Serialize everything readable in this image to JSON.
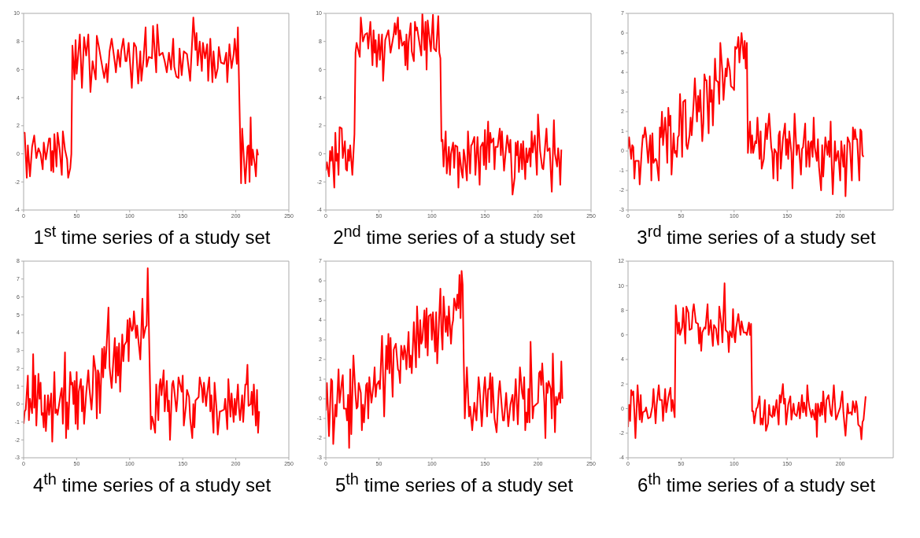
{
  "chart_data": [
    {
      "type": "line",
      "title": "1$^{st}$ time series of a study set",
      "color": "#ff0000",
      "xlim": [
        0,
        250
      ],
      "xticks": [
        0,
        50,
        100,
        150,
        200,
        250
      ],
      "ylim": [
        -4,
        10
      ],
      "yticks": [
        -4,
        -2,
        0,
        2,
        4,
        6,
        8,
        10
      ],
      "x": [
        0,
        1,
        3,
        4,
        6,
        8,
        10,
        12,
        14,
        16,
        18,
        19,
        21,
        24,
        25,
        26,
        27,
        28,
        29,
        31,
        32,
        34,
        36,
        37,
        39,
        41,
        42,
        44,
        45,
        46,
        48,
        49,
        50,
        53,
        55,
        57,
        59,
        61,
        63,
        65,
        68,
        69,
        71,
        73,
        76,
        78,
        79,
        81,
        83,
        86,
        87,
        89,
        91,
        92,
        94,
        96,
        97,
        99,
        101,
        102,
        104,
        106,
        108,
        110,
        111,
        113,
        115,
        116,
        118,
        121,
        122,
        125,
        126,
        128,
        131,
        133,
        135,
        137,
        139,
        141,
        142,
        144,
        146,
        147,
        149,
        151,
        154,
        157,
        160,
        162,
        163,
        164,
        166,
        168,
        169,
        171,
        173,
        174,
        176,
        178,
        179,
        181,
        183,
        184,
        186,
        189,
        191,
        192,
        194,
        196,
        198,
        199,
        201,
        202,
        205,
        206,
        209,
        211,
        212,
        213,
        214,
        215,
        216,
        218,
        219,
        220,
        221
      ],
      "values": [
        1.5,
        1.5,
        -1.7,
        0.6,
        -1.6,
        0.5,
        1.3,
        -0.3,
        0.4,
        0,
        -1.1,
        0.8,
        -0.4,
        1.1,
        1.1,
        -1.2,
        0.2,
        -1.3,
        1.4,
        -0.9,
        1.5,
        0.3,
        -1.5,
        1.6,
        0.3,
        -0.4,
        -1.7,
        -1.0,
        0,
        7.7,
        5.3,
        8.1,
        5.7,
        8.5,
        4.7,
        8.3,
        7.0,
        8.5,
        4.4,
        6.6,
        5.3,
        8.4,
        7.6,
        6.7,
        5.4,
        6.4,
        5.1,
        7.3,
        8.2,
        6.5,
        5.8,
        7.4,
        6.2,
        7.3,
        8.2,
        6.6,
        6.6,
        7.9,
        5.8,
        4.7,
        7.9,
        7.6,
        5.0,
        7.3,
        5.2,
        6.7,
        9.0,
        6.2,
        6.9,
        6.8,
        9.1,
        5.8,
        9.2,
        7.0,
        7.2,
        6.6,
        5.8,
        7.2,
        6.0,
        8.2,
        6.2,
        5.5,
        5.4,
        7.5,
        5.6,
        7.3,
        7.1,
        5.2,
        9.7,
        7.4,
        8.6,
        6.3,
        8.0,
        5.9,
        7.9,
        6.8,
        7.8,
        5.2,
        8.2,
        5.1,
        7.3,
        5.4,
        6.1,
        7.6,
        6.5,
        6.4,
        7.2,
        5.1,
        7.8,
        6.1,
        7.1,
        8.2,
        6.4,
        9.0,
        -2.1,
        1.8,
        -2.1,
        0.5,
        0.6,
        -2.0,
        2.6,
        -0.8,
        0.3,
        -0.8,
        -1.6,
        0.3,
        -0.1
      ]
    },
    {
      "type": "line",
      "title": "2$^{nd}$ time series of a study set",
      "color": "#ff0000",
      "xlim": [
        0,
        250
      ],
      "xticks": [
        0,
        50,
        100,
        150,
        200,
        250
      ],
      "ylim": [
        -4,
        10
      ],
      "yticks": [
        -4,
        -2,
        0,
        2,
        4,
        6,
        8,
        10
      ],
      "x": [
        0,
        1,
        3,
        4,
        5,
        6,
        8,
        9,
        10,
        11,
        12,
        13,
        15,
        16,
        18,
        19,
        20,
        21,
        22,
        23,
        25,
        27,
        28,
        29,
        32,
        33,
        35,
        37,
        39,
        40,
        42,
        44,
        45,
        46,
        47,
        48,
        50,
        51,
        53,
        54,
        56,
        59,
        61,
        64,
        65,
        66,
        68,
        69,
        70,
        72,
        74,
        75,
        76,
        77,
        78,
        80,
        81,
        83,
        84,
        85,
        86,
        88,
        90,
        91,
        93,
        94,
        95,
        96,
        98,
        99,
        101,
        102,
        104,
        106,
        107,
        108,
        109,
        110,
        111,
        113,
        114,
        116,
        117,
        118,
        120,
        121,
        122,
        124,
        125,
        126,
        128,
        129,
        130,
        131,
        133,
        134,
        136,
        137,
        138,
        140,
        141,
        143,
        145,
        146,
        148,
        149,
        150,
        151,
        153,
        154,
        155,
        156,
        158,
        159,
        160,
        162,
        164,
        165,
        166,
        168,
        170,
        171,
        173,
        174,
        176,
        178,
        179,
        180,
        181,
        182,
        184,
        185,
        186,
        188,
        189,
        190,
        192,
        193,
        194,
        195,
        197,
        199,
        200,
        202,
        204,
        205,
        208,
        209,
        211,
        213,
        215,
        216,
        218,
        219,
        220,
        221,
        222
      ],
      "values": [
        -1.2,
        -0.6,
        -1.6,
        0.2,
        -0.5,
        0.5,
        -2.4,
        1.5,
        -0.5,
        0,
        -1.5,
        1.9,
        1.8,
        -0.3,
        0.9,
        -1.1,
        -1.2,
        0.3,
        -0.5,
        0.6,
        -1.5,
        1.4,
        7.2,
        7.9,
        6.9,
        9.7,
        8.0,
        8.5,
        8.6,
        7.5,
        9.4,
        6.3,
        8.8,
        7.2,
        8.1,
        6.2,
        8.5,
        6.7,
        8.5,
        5.2,
        8.1,
        8.8,
        7.2,
        8.5,
        9.3,
        8.5,
        9.7,
        7.5,
        8.8,
        7.7,
        8.0,
        6.3,
        8.5,
        6.0,
        7.9,
        9.3,
        7.3,
        6.6,
        9.4,
        8.8,
        9.0,
        8.0,
        7.0,
        10.0,
        7.4,
        9.4,
        6.0,
        9.5,
        8.0,
        7.3,
        9.9,
        7.5,
        7.3,
        9.8,
        7.2,
        6.8,
        0.9,
        1.0,
        -0.9,
        1.6,
        -1.4,
        0.5,
        -1.5,
        0,
        0.8,
        -1.0,
        0.6,
        0.5,
        -2.4,
        0.1,
        -1.3,
        -1.7,
        0.3,
        -0.2,
        -1.9,
        1.6,
        -1.4,
        0.6,
        0.7,
        1.2,
        -1.5,
        1.2,
        -2.2,
        0.5,
        0.8,
        -0.8,
        1.7,
        -1.1,
        2.3,
        -0.6,
        1.5,
        0.8,
        1.1,
        -1.1,
        0.5,
        0.5,
        1.8,
        -0.1,
        1.6,
        -1.2,
        0.5,
        1.3,
        0.1,
        1.0,
        -2.9,
        -1.7,
        0.8,
        -0.1,
        0.9,
        -1.3,
        0.7,
        -1.1,
        0.9,
        -1.8,
        0.4,
        -0.6,
        0.4,
        -0.9,
        1.6,
        0.1,
        1.3,
        -1.5,
        2.8,
        0.2,
        -1.0,
        -1.1,
        1.8,
        0.2,
        0.4,
        -2.7,
        2.4,
        0,
        -0.9,
        0.4,
        -0.4,
        -2.2,
        0.3
      ]
    },
    {
      "type": "line",
      "title": "3$^{rd}$ time series of a study set",
      "color": "#ff0000",
      "xlim": [
        0,
        250
      ],
      "xticks": [
        0,
        50,
        100,
        150,
        200
      ],
      "ylim": [
        -3,
        7
      ],
      "yticks": [
        -3,
        -2,
        -1,
        0,
        1,
        2,
        3,
        4,
        5,
        6,
        7
      ],
      "x": [
        0,
        1,
        3,
        4,
        5,
        6,
        7,
        10,
        11,
        13,
        14,
        15,
        16,
        17,
        19,
        20,
        21,
        22,
        23,
        24,
        26,
        27,
        29,
        30,
        31,
        32,
        33,
        35,
        36,
        37,
        38,
        39,
        40,
        41,
        43,
        44,
        45,
        46,
        47,
        48,
        49,
        50,
        51,
        52,
        54,
        55,
        56,
        58,
        59,
        60,
        62,
        63,
        65,
        66,
        67,
        68,
        70,
        71,
        72,
        73,
        74,
        76,
        77,
        78,
        79,
        80,
        82,
        83,
        85,
        86,
        87,
        89,
        90,
        92,
        93,
        94,
        96,
        97,
        99,
        100,
        101,
        102,
        103,
        104,
        105,
        107,
        108,
        109,
        110,
        111,
        112,
        113,
        115,
        116,
        117,
        118,
        120,
        121,
        122,
        124,
        125,
        126,
        128,
        130,
        131,
        133,
        135,
        136,
        137,
        138,
        140,
        141,
        142,
        143,
        144,
        146,
        148,
        149,
        150,
        151,
        152,
        154,
        155,
        157,
        159,
        160,
        161,
        163,
        164,
        165,
        167,
        168,
        170,
        171,
        172,
        173,
        174,
        175,
        176,
        178,
        179,
        180,
        182,
        183,
        184,
        186,
        188,
        189,
        190,
        191,
        192,
        193,
        195,
        196,
        198,
        199,
        200,
        201,
        203,
        204,
        205,
        207,
        209,
        211,
        212,
        213,
        214,
        215,
        216,
        218,
        219,
        220,
        221,
        222
      ],
      "values": [
        0.1,
        0.7,
        -0.4,
        0.3,
        0.2,
        -1.4,
        -0.5,
        -0.5,
        -1.7,
        0.1,
        0.8,
        0.7,
        1.2,
        0.8,
        -0.6,
        0.2,
        0.8,
        -1.5,
        0.9,
        -0.6,
        -0.4,
        -0.5,
        -1.5,
        1.2,
        0.7,
        2.0,
        0.3,
        1.7,
        0.8,
        -0.6,
        2.2,
        1.3,
        1.8,
        -1.2,
        0.9,
        -0.1,
        0,
        -0.3,
        0.7,
        0.8,
        2.9,
        1.8,
        -0.3,
        2.5,
        2.6,
        0.3,
        0.1,
        0.8,
        1.7,
        0.8,
        2.6,
        3.7,
        1.5,
        2.8,
        2.0,
        3.1,
        0.5,
        1.4,
        3.9,
        3.6,
        3.6,
        0.9,
        3.8,
        2.5,
        3.1,
        1.3,
        4.7,
        3.6,
        3.5,
        2.4,
        5.5,
        4.0,
        2.6,
        4.2,
        3.8,
        4.7,
        4.1,
        3.3,
        3.2,
        3.1,
        5.3,
        5.2,
        5.3,
        5.8,
        4.5,
        6.0,
        5.4,
        4.7,
        5.6,
        4.2,
        5.5,
        -0.1,
        1.5,
        -0.1,
        0.8,
        -0.1,
        0.5,
        0.4,
        1.7,
        -0.4,
        1.0,
        -0.9,
        -0.4,
        1.4,
        0.6,
        1.9,
        0.2,
        -0.1,
        -1.4,
        0.1,
        -0.1,
        -1.5,
        0.8,
        1.0,
        -0.9,
        0.6,
        1.4,
        -0.2,
        0.6,
        -0.4,
        1.0,
        -0.1,
        -1.9,
        1.9,
        -0.2,
        0.3,
        0.3,
        -1.2,
        0.1,
        0.2,
        1.4,
        -0.8,
        0.5,
        -0.8,
        0.4,
        0.5,
        -0.3,
        1.7,
        0.2,
        -0.5,
        0.6,
        -0.8,
        -2.0,
        0.3,
        -1.3,
        0.7,
        -0.2,
        0.5,
        -0.3,
        1.5,
        -0.7,
        -2.2,
        0.5,
        -0.5,
        0,
        -0.7,
        -1.5,
        0.5,
        -0.8,
        0.3,
        -2.3,
        0.7,
        0.4,
        -1.5,
        1.2,
        0.6,
        1.1,
        0.6,
        0.6,
        -1.5,
        1.1,
        1.0,
        -0.2,
        -0.3
      ]
    },
    {
      "type": "line",
      "title": "4$^{th}$ time series of a study set",
      "color": "#ff0000",
      "xlim": [
        0,
        250
      ],
      "xticks": [
        0,
        50,
        100,
        150,
        200,
        250
      ],
      "ylim": [
        -3,
        8
      ],
      "yticks": [
        -3,
        -2,
        -1,
        0,
        1,
        2,
        3,
        4,
        5,
        6,
        7,
        8
      ],
      "x": [
        0,
        1,
        2,
        4,
        5,
        6,
        8,
        9,
        10,
        11,
        12,
        14,
        15,
        16,
        17,
        18,
        19,
        20,
        21,
        23,
        24,
        26,
        27,
        29,
        30,
        31,
        32,
        35,
        36,
        37,
        39,
        40,
        41,
        42,
        44,
        45,
        46,
        47,
        48,
        49,
        50,
        51,
        52,
        54,
        55,
        56,
        57,
        59,
        61,
        62,
        64,
        65,
        66,
        68,
        69,
        70,
        71,
        72,
        74,
        75,
        76,
        77,
        78,
        80,
        81,
        83,
        84,
        86,
        87,
        88,
        89,
        90,
        91,
        93,
        94,
        95,
        97,
        98,
        99,
        100,
        102,
        103,
        104,
        106,
        107,
        108,
        110,
        112,
        113,
        115,
        116,
        117,
        120,
        121,
        122,
        124,
        125,
        127,
        128,
        129,
        130,
        132,
        133,
        135,
        136,
        137,
        138,
        140,
        141,
        142,
        144,
        145,
        146,
        149,
        150,
        151,
        153,
        154,
        156,
        157,
        159,
        160,
        161,
        162,
        165,
        166,
        168,
        169,
        170,
        172,
        173,
        175,
        176,
        177,
        179,
        180,
        182,
        183,
        185,
        186,
        189,
        190,
        192,
        193,
        195,
        196,
        198,
        199,
        200,
        202,
        203,
        204,
        206,
        207,
        209,
        210,
        211,
        212,
        214,
        215,
        216,
        217,
        219,
        220,
        221,
        222
      ],
      "values": [
        -1.1,
        -0.4,
        -0.3,
        1.6,
        -0.9,
        0.3,
        -0.5,
        2.8,
        -0.2,
        1.6,
        -1.2,
        1.7,
        0.3,
        1.2,
        -0.6,
        -0.5,
        -1.3,
        0.5,
        -1.5,
        0.5,
        -0.6,
        0.6,
        -2.1,
        1.8,
        -0.5,
        -0.3,
        -0.6,
        0.6,
        0.9,
        -1.1,
        2.9,
        -1.9,
        0.1,
        -1.4,
        1.8,
        1.1,
        1.2,
        0,
        1.3,
        -1.1,
        1.8,
        -1.4,
        0.7,
        1.4,
        -0.4,
        1.0,
        -1.1,
        0.6,
        1.9,
        0.9,
        -0.3,
        0.6,
        2.7,
        1.8,
        -0.8,
        1.9,
        1.7,
        -0.5,
        3.1,
        1.5,
        3.2,
        2.0,
        3.0,
        5.4,
        2.1,
        0.9,
        1.9,
        3.7,
        1.2,
        3.2,
        1.6,
        3.4,
        0.7,
        3.9,
        2.4,
        3.3,
        3.5,
        4.7,
        2.4,
        4.8,
        4.1,
        4.2,
        5.2,
        3.7,
        4.4,
        3.7,
        2.5,
        5.9,
        3.7,
        4.3,
        4.4,
        7.6,
        -1.4,
        -0.7,
        -0.9,
        -1.6,
        1.1,
        -0.9,
        1.0,
        1.4,
        0.5,
        1.9,
        -0.4,
        1.3,
        -0.4,
        0.2,
        -2.0,
        1.1,
        1.3,
        0.8,
        -0.4,
        0.3,
        1.5,
        0.7,
        1.6,
        -1.2,
        -0.1,
        0.8,
        0.4,
        -0.8,
        -1.9,
        0,
        -1.3,
        0.2,
        0.4,
        1.5,
        0.9,
        0.1,
        1.2,
        -0.1,
        0.6,
        1.5,
        -0.4,
        0.5,
        -1.6,
        1.2,
        -0.4,
        -1.7,
        -0.4,
        -0.4,
        -0.3,
        0.3,
        -1.4,
        1.4,
        -0.7,
        0.6,
        -1.0,
        0.3,
        -0.6,
        1.1,
        -0.2,
        -0.9,
        0.5,
        -1.0,
        1.1,
        1.1,
        2.2,
        -0.1,
        0,
        0.7,
        -0.6,
        1.1,
        -1.2,
        0.8,
        -1.6,
        -0.4
      ]
    },
    {
      "type": "line",
      "title": "5$^{th}$ time series of a study set",
      "color": "#ff0000",
      "xlim": [
        0,
        250
      ],
      "xticks": [
        0,
        50,
        100,
        150,
        200,
        250
      ],
      "ylim": [
        -3,
        7
      ],
      "yticks": [
        -3,
        -2,
        -1,
        0,
        1,
        2,
        3,
        4,
        5,
        6,
        7
      ],
      "x": [
        0,
        1,
        3,
        5,
        6,
        7,
        9,
        10,
        12,
        13,
        15,
        16,
        17,
        19,
        20,
        21,
        22,
        23,
        24,
        26,
        28,
        29,
        30,
        31,
        33,
        34,
        35,
        36,
        38,
        39,
        40,
        41,
        43,
        45,
        46,
        47,
        48,
        50,
        51,
        53,
        55,
        56,
        57,
        58,
        59,
        60,
        61,
        63,
        64,
        66,
        68,
        69,
        70,
        71,
        73,
        74,
        75,
        76,
        78,
        79,
        80,
        81,
        83,
        85,
        86,
        88,
        89,
        90,
        91,
        93,
        94,
        95,
        96,
        97,
        99,
        100,
        101,
        103,
        104,
        105,
        108,
        109,
        110,
        111,
        113,
        114,
        115,
        116,
        118,
        119,
        120,
        121,
        123,
        124,
        125,
        126,
        127,
        128,
        129,
        130,
        131,
        133,
        134,
        135,
        136,
        138,
        140,
        142,
        144,
        145,
        147,
        149,
        150,
        152,
        153,
        154,
        155,
        156,
        157,
        159,
        161,
        163,
        164,
        166,
        167,
        168,
        170,
        172,
        174,
        176,
        177,
        179,
        181,
        183,
        185,
        186,
        187,
        188,
        189,
        190,
        191,
        192,
        193,
        195,
        196,
        198,
        200,
        201,
        202,
        203,
        204,
        206,
        207,
        208,
        209,
        210,
        212,
        213,
        214,
        216,
        217,
        218,
        220,
        221,
        222,
        223
      ],
      "values": [
        -0.6,
        0.8,
        -1.9,
        1.0,
        0.9,
        -2.3,
        -0.3,
        -0.9,
        1.5,
        -0.2,
        0.8,
        1.2,
        -0.5,
        -0.5,
        -1.1,
        0.2,
        -2.5,
        1.5,
        -1.8,
        2.2,
        0.2,
        -0.5,
        -0.4,
        0.8,
        0.3,
        -1.6,
        -0.3,
        -1.2,
        0.7,
        0.8,
        -1.0,
        1.1,
        -0.2,
        0.7,
        1.6,
        0.1,
        0.7,
        0.9,
        0.5,
        3.2,
        -0.9,
        1.0,
        2.7,
        1.5,
        3.3,
        1.3,
        3.1,
        0.1,
        2.5,
        2.8,
        1.5,
        1.4,
        0.8,
        2.7,
        2.0,
        2.7,
        2.4,
        1.5,
        3.4,
        1.6,
        2.2,
        1.3,
        3.9,
        1.6,
        4.7,
        2.1,
        4.0,
        2.8,
        3.0,
        4.5,
        2.6,
        4.6,
        2.2,
        4.2,
        4.3,
        3.0,
        4.4,
        2.4,
        4.4,
        1.8,
        5.6,
        3.4,
        2.5,
        5.2,
        3.4,
        4.2,
        3.2,
        4.7,
        2.8,
        3.7,
        4.0,
        5.1,
        4.5,
        5.3,
        4.6,
        6.3,
        4.1,
        6.5,
        5.8,
        2.0,
        -1.0,
        1.6,
        0.3,
        -0.9,
        -0.4,
        -1.6,
        -0.2,
        -1.1,
        1.1,
        0.5,
        -1.4,
        0.5,
        1.1,
        -0.9,
        0.5,
        0.5,
        1.3,
        -0.7,
        1.1,
        -1.0,
        -1.7,
        0.4,
        0.9,
        -0.5,
        -1.1,
        -1.1,
        0.3,
        -1.4,
        -0.3,
        0.2,
        -1.1,
        1.0,
        -1.3,
        1.6,
        0.3,
        0,
        1.1,
        -1.6,
        -0.7,
        -1.2,
        0.5,
        -1.2,
        2.9,
        -1.0,
        -0.4,
        -0.3,
        -0.2,
        1.3,
        1.4,
        0.7,
        1.8,
        -0.2,
        -2.0,
        0.8,
        0.3,
        0.9,
        0.5,
        -1.0,
        2.3,
        -1.7,
        0.1,
        -0.3,
        0.3,
        -0.2,
        1.9,
        0
      ]
    },
    {
      "type": "line",
      "title": "6$^{th}$ time series of a study set",
      "color": "#ff0000",
      "xlim": [
        0,
        250
      ],
      "xticks": [
        0,
        50,
        100,
        150,
        200
      ],
      "ylim": [
        -4,
        12
      ],
      "yticks": [
        -4,
        -2,
        0,
        2,
        4,
        6,
        8,
        10,
        12
      ],
      "x": [
        0,
        1,
        2,
        3,
        4,
        5,
        6,
        7,
        9,
        11,
        12,
        13,
        14,
        16,
        17,
        19,
        21,
        23,
        24,
        26,
        27,
        29,
        30,
        32,
        33,
        35,
        36,
        38,
        40,
        41,
        42,
        44,
        45,
        47,
        48,
        49,
        51,
        52,
        54,
        55,
        57,
        58,
        60,
        61,
        62,
        64,
        66,
        67,
        68,
        69,
        70,
        72,
        73,
        75,
        76,
        78,
        79,
        80,
        81,
        83,
        84,
        85,
        86,
        88,
        89,
        91,
        92,
        94,
        95,
        96,
        98,
        99,
        100,
        101,
        102,
        104,
        106,
        107,
        109,
        111,
        112,
        114,
        115,
        116,
        117,
        118,
        119,
        121,
        122,
        124,
        125,
        126,
        127,
        129,
        130,
        132,
        133,
        134,
        136,
        137,
        138,
        140,
        142,
        143,
        144,
        146,
        147,
        148,
        149,
        151,
        153,
        154,
        156,
        157,
        159,
        161,
        162,
        164,
        165,
        166,
        168,
        169,
        170,
        171,
        173,
        174,
        176,
        177,
        178,
        179,
        181,
        182,
        183,
        184,
        186,
        187,
        189,
        191,
        192,
        194,
        196,
        197,
        198,
        200,
        201,
        202,
        203,
        205,
        207,
        208,
        210,
        211,
        212,
        214,
        215,
        216,
        217,
        219,
        220,
        221,
        222,
        224
      ],
      "values": [
        -1.5,
        0.3,
        -1.0,
        1.5,
        1.1,
        1.4,
        -0.3,
        -2.4,
        1.9,
        -0.9,
        1.1,
        -1.1,
        -0.3,
        -0.2,
        0.1,
        -0.8,
        -0.7,
        0.2,
        1.6,
        -1.2,
        0.3,
        1.9,
        0.7,
        0.7,
        -1.0,
        1.6,
        -0.3,
        0.9,
        1.7,
        -0.2,
        0.7,
        -0.7,
        8.4,
        6.1,
        7.0,
        6.0,
        6.6,
        8.2,
        5.3,
        8.3,
        7.8,
        6.4,
        6.5,
        7.9,
        8.5,
        7.0,
        6.9,
        5.3,
        6.6,
        4.7,
        6.2,
        6.6,
        6.5,
        8.5,
        6.0,
        7.2,
        6.1,
        5.1,
        6.8,
        6.5,
        5.7,
        5.2,
        8.3,
        6.9,
        5.4,
        10.2,
        6.4,
        6.2,
        4.6,
        6.3,
        5.8,
        8.1,
        6.0,
        5.4,
        6.6,
        7.7,
        6.0,
        7.1,
        6.2,
        6.2,
        6.0,
        7.0,
        6.0,
        6.9,
        -0.2,
        -0.2,
        -1.2,
        0,
        0.1,
        1.0,
        -1.3,
        -0.8,
        -1.3,
        0.7,
        -1.8,
        -1.2,
        0.3,
        -0.5,
        -0.7,
        0.2,
        -0.6,
        0.7,
        -1.3,
        1.1,
        0.5,
        2.0,
        0.4,
        0.8,
        -1.3,
        0.3,
        1.0,
        -0.9,
        0.4,
        -0.4,
        -0.6,
        0.5,
        -0.8,
        1.1,
        -0.3,
        0.5,
        -0.6,
        1.9,
        0.7,
        0.1,
        -0.7,
        -0.1,
        -0.9,
        0.4,
        -2.3,
        0.4,
        -0.6,
        0.5,
        -0.5,
        1.4,
        -1.1,
        0.7,
        1.1,
        -0.4,
        -0.6,
        1.9,
        -0.9,
        -0.7,
        -0.4,
        0.1,
        0.8,
        1.4,
        -0.3,
        -2.2,
        0.4,
        -0.4,
        -0.3,
        -0.5,
        0.6,
        -0.3,
        0.6,
        0.1,
        -1.3,
        -1.5,
        -2.5,
        -1.1,
        -0.9,
        1.0
      ]
    }
  ]
}
